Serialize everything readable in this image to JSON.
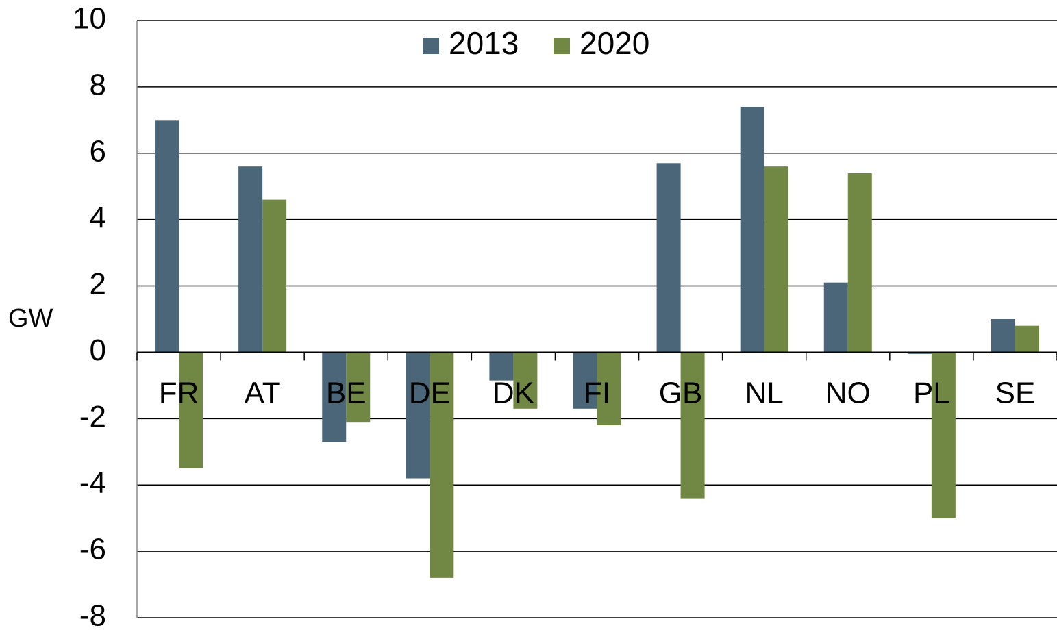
{
  "chart_data": {
    "type": "bar",
    "y_label": "GW",
    "categories": [
      "FR",
      "AT",
      "BE",
      "DE",
      "DK",
      "FI",
      "GB",
      "NL",
      "NO",
      "PL",
      "SE"
    ],
    "series": [
      {
        "name": "2013",
        "color": "#4b6679",
        "values": [
          7.0,
          5.6,
          -2.7,
          -3.8,
          -0.85,
          -1.7,
          5.7,
          7.4,
          2.1,
          -0.05,
          1.0
        ]
      },
      {
        "name": "2020",
        "color": "#718744",
        "values": [
          -3.5,
          4.6,
          -2.1,
          -6.8,
          -1.7,
          -2.2,
          -4.4,
          5.6,
          5.4,
          -5.0,
          0.8
        ]
      }
    ],
    "ylim": [
      -8,
      10
    ],
    "yticks": [
      -8,
      -6,
      -4,
      -2,
      0,
      2,
      4,
      6,
      8,
      10
    ],
    "grid": true,
    "legend": "top"
  }
}
